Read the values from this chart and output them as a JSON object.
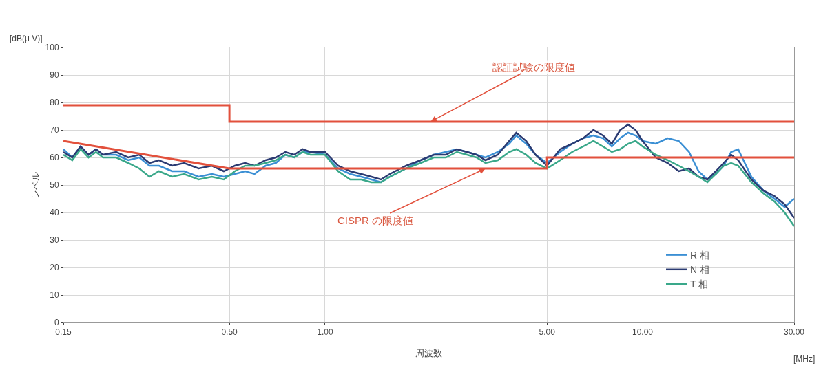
{
  "chart_data": {
    "type": "line",
    "xlabel": "周波数",
    "ylabel": "レベル",
    "log": "x",
    "grid": true,
    "legend": "bottom right",
    "marker": "none",
    "line_style": "solid",
    "xlim": [
      0.15,
      30
    ],
    "xticks": [
      {
        "value": 0.15,
        "label": "0.15"
      },
      {
        "value": 0.5,
        "label": "0.50"
      },
      {
        "value": 1,
        "label": "1.00"
      },
      {
        "value": 5,
        "label": "5.00"
      },
      {
        "value": 10,
        "label": "10.00"
      },
      {
        "value": 30,
        "label": "30.00"
      }
    ],
    "ylim": [
      0,
      100
    ],
    "yticks": [
      0,
      10,
      20,
      30,
      40,
      50,
      60,
      70,
      80,
      90,
      100
    ],
    "x": [
      0.15,
      0.16,
      0.17,
      0.18,
      0.19,
      0.2,
      0.22,
      0.24,
      0.26,
      0.28,
      0.3,
      0.33,
      0.36,
      0.4,
      0.44,
      0.48,
      0.52,
      0.56,
      0.6,
      0.65,
      0.7,
      0.75,
      0.8,
      0.85,
      0.9,
      1.0,
      1.1,
      1.2,
      1.3,
      1.4,
      1.5,
      1.6,
      1.8,
      2.0,
      2.2,
      2.4,
      2.6,
      2.8,
      3.0,
      3.2,
      3.5,
      3.8,
      4.0,
      4.3,
      4.6,
      5.0,
      5.5,
      6.0,
      6.5,
      7.0,
      7.5,
      8.0,
      8.5,
      9.0,
      9.5,
      10,
      11,
      12,
      13,
      14,
      15,
      16,
      17,
      18,
      19,
      20,
      22,
      24,
      26,
      28,
      30
    ],
    "series": [
      {
        "name": "R 相",
        "color": "#3b8fd4",
        "values": [
          63,
          60,
          64,
          61,
          63,
          61,
          61,
          59,
          60,
          57,
          57,
          55,
          55,
          53,
          54,
          53,
          54,
          55,
          54,
          57,
          58,
          61,
          60,
          62,
          62,
          61,
          56,
          54,
          53,
          52,
          51,
          53,
          56,
          59,
          61,
          62,
          63,
          62,
          61,
          60,
          62,
          65,
          68,
          65,
          61,
          58,
          62,
          65,
          67,
          68,
          67,
          64,
          67,
          69,
          68,
          66,
          65,
          67,
          66,
          62,
          55,
          52,
          54,
          57,
          62,
          63,
          53,
          48,
          45,
          42,
          45
        ]
      },
      {
        "name": "N 相",
        "color": "#2b3b72",
        "values": [
          62,
          60,
          64,
          61,
          63,
          61,
          62,
          60,
          61,
          58,
          59,
          57,
          58,
          56,
          57,
          55,
          57,
          58,
          57,
          59,
          60,
          62,
          61,
          63,
          62,
          62,
          57,
          55,
          54,
          53,
          52,
          54,
          57,
          59,
          61,
          61,
          63,
          62,
          61,
          59,
          61,
          66,
          69,
          66,
          61,
          57,
          63,
          65,
          67,
          70,
          68,
          65,
          70,
          72,
          70,
          66,
          60,
          58,
          55,
          56,
          53,
          52,
          55,
          58,
          61,
          59,
          52,
          48,
          46,
          43,
          38
        ]
      },
      {
        "name": "T 相",
        "color": "#3aa88a",
        "values": [
          61,
          59,
          63,
          60,
          62,
          60,
          60,
          58,
          56,
          53,
          55,
          53,
          54,
          52,
          53,
          52,
          55,
          57,
          57,
          58,
          59,
          61,
          60,
          62,
          61,
          61,
          55,
          52,
          52,
          51,
          51,
          53,
          56,
          58,
          60,
          60,
          62,
          61,
          60,
          58,
          59,
          62,
          63,
          61,
          58,
          56,
          59,
          62,
          64,
          66,
          64,
          62,
          63,
          65,
          66,
          64,
          61,
          59,
          57,
          55,
          53,
          51,
          54,
          57,
          58,
          57,
          51,
          47,
          44,
          40,
          35
        ]
      },
      {
        "color": "#e2503c",
        "x": [
          0.15,
          0.5,
          0.5,
          30
        ],
        "values": [
          79,
          79,
          73,
          73
        ]
      },
      {
        "color": "#e2503c",
        "x": [
          0.15,
          0.5,
          5,
          5,
          30
        ],
        "values": [
          66,
          56,
          56,
          60,
          60
        ]
      }
    ],
    "annotations": [
      "[dB(μ V)]",
      "[MHz]",
      {
        "text": "認証試験の限度値",
        "x": 2.15,
        "y": 73
      },
      {
        "text": "CISPR の限度値",
        "x": 3.2,
        "y": 56
      }
    ]
  }
}
